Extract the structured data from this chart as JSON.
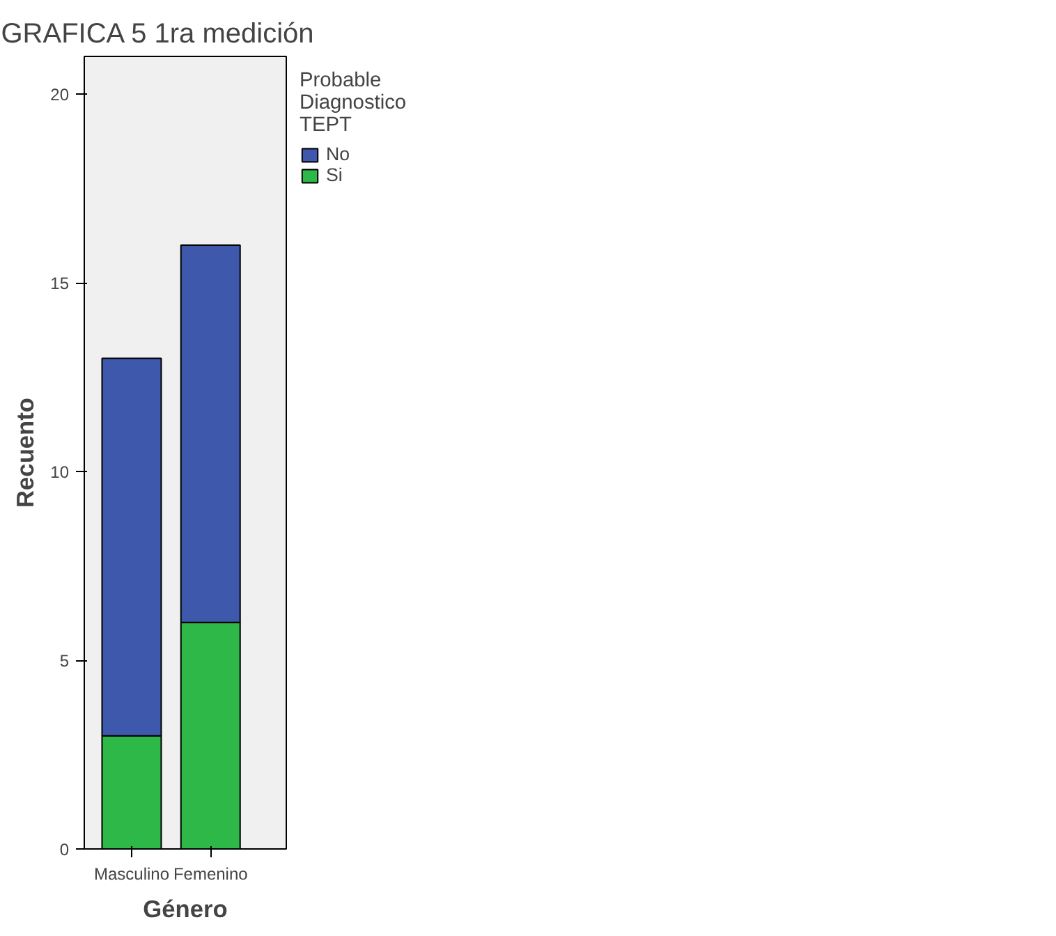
{
  "chart_data": {
    "type": "bar",
    "title": "GRAFICA 5        1ra medición",
    "xlabel": "Género",
    "ylabel": "Recuento",
    "legend_title": "Probable Diagnostico TEPT",
    "categories": [
      "Masculino",
      "Femenino"
    ],
    "stacked": true,
    "series": [
      {
        "name": "Si",
        "color": "#2eb848",
        "values": [
          3,
          6
        ]
      },
      {
        "name": "No",
        "color": "#3e58ac",
        "values": [
          10,
          10
        ]
      }
    ],
    "ylim": [
      0,
      21
    ],
    "yticks": [
      0,
      5,
      10,
      15,
      20
    ],
    "grid": false,
    "legend": "top right"
  }
}
